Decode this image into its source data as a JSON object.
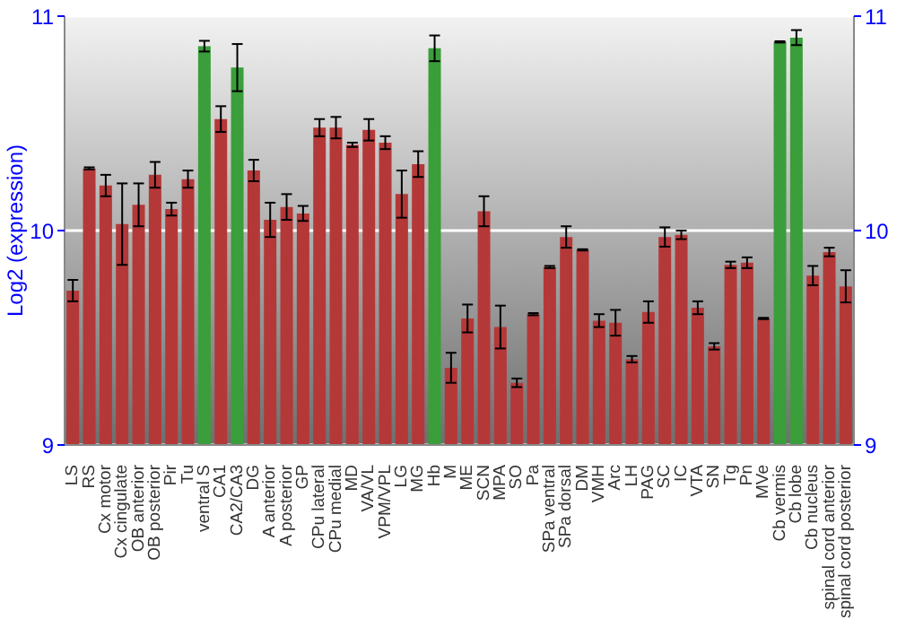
{
  "chart_data": {
    "type": "bar",
    "ylabel": "Log2 (expression)",
    "categories": [
      "LS",
      "RS",
      "Cx motor",
      "Cx cingulate",
      "OB anterior",
      "OB posterior",
      "Pir",
      "Tu",
      "ventral S",
      "CA1",
      "CA2/CA3",
      "DG",
      "A anterior",
      "A posterior",
      "GP",
      "CPu lateral",
      "CPu medial",
      "MD",
      "VA/VL",
      "VPM/VPL",
      "LG",
      "MG",
      "Hb",
      "M",
      "ME",
      "SCN",
      "MPA",
      "SO",
      "Pa",
      "SPa ventral",
      "SPa dorsal",
      "DM",
      "VMH",
      "Arc",
      "LH",
      "PAG",
      "SC",
      "IC",
      "VTA",
      "SN",
      "Tg",
      "Pn",
      "MVe",
      "Cb vermis",
      "Cb lobe",
      "Cb nucleus",
      "spinal cord anterior",
      "spinal cord posterior"
    ],
    "values": [
      9.72,
      10.29,
      10.21,
      10.03,
      10.12,
      10.26,
      10.1,
      10.24,
      10.86,
      10.52,
      10.76,
      10.28,
      10.05,
      10.11,
      10.08,
      10.48,
      10.48,
      10.4,
      10.47,
      10.41,
      10.17,
      10.31,
      10.85,
      9.36,
      9.59,
      10.09,
      9.55,
      9.29,
      9.61,
      9.83,
      9.97,
      9.91,
      9.58,
      9.57,
      9.4,
      9.62,
      9.97,
      9.98,
      9.64,
      9.46,
      9.84,
      9.85,
      9.59,
      10.88,
      10.9,
      9.79,
      9.9,
      9.74
    ],
    "errors": [
      0.05,
      0.005,
      0.05,
      0.19,
      0.1,
      0.06,
      0.03,
      0.04,
      0.025,
      0.06,
      0.11,
      0.05,
      0.08,
      0.06,
      0.035,
      0.04,
      0.05,
      0.01,
      0.05,
      0.03,
      0.11,
      0.06,
      0.06,
      0.07,
      0.065,
      0.07,
      0.1,
      0.02,
      0.005,
      0.005,
      0.05,
      0.003,
      0.03,
      0.06,
      0.015,
      0.05,
      0.045,
      0.02,
      0.03,
      0.015,
      0.015,
      0.025,
      0.003,
      0.003,
      0.035,
      0.045,
      0.02,
      0.075
    ],
    "colors": [
      "#b53838",
      "#b53838",
      "#b53838",
      "#b53838",
      "#b53838",
      "#b53838",
      "#b53838",
      "#b53838",
      "#3a9e3a",
      "#b53838",
      "#3a9e3a",
      "#b53838",
      "#b53838",
      "#b53838",
      "#b53838",
      "#b53838",
      "#b53838",
      "#b53838",
      "#b53838",
      "#b53838",
      "#b53838",
      "#b53838",
      "#3a9e3a",
      "#b53838",
      "#b53838",
      "#b53838",
      "#b53838",
      "#b53838",
      "#b53838",
      "#b53838",
      "#b53838",
      "#b53838",
      "#b53838",
      "#b53838",
      "#b53838",
      "#b53838",
      "#b53838",
      "#b53838",
      "#b53838",
      "#b53838",
      "#b53838",
      "#b53838",
      "#b53838",
      "#3a9e3a",
      "#3a9e3a",
      "#b53838",
      "#b53838",
      "#b53838"
    ],
    "ylim": [
      9,
      11
    ],
    "yticks": [
      9,
      10,
      11
    ],
    "y2lim": [
      9,
      11
    ],
    "y2ticks": [
      9,
      10,
      11
    ],
    "grid": "y"
  }
}
